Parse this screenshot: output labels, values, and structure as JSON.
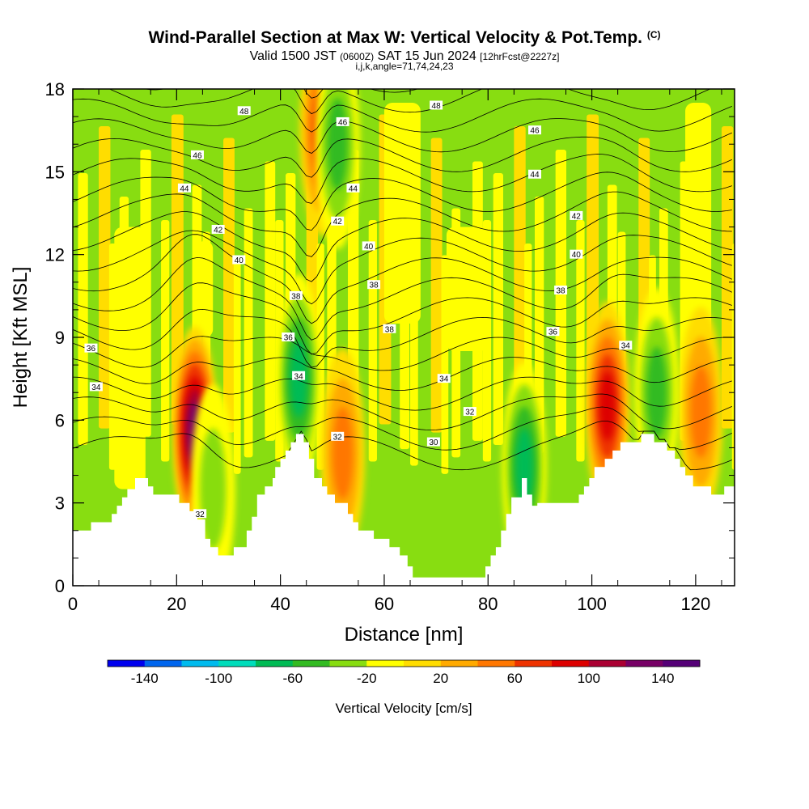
{
  "title": {
    "main": "Wind-Parallel Section at Max W: Vertical Velocity & Pot.Temp.",
    "copyright": "(C)",
    "valid_prefix": "Valid 1500 JST",
    "valid_small": "(0600Z)",
    "valid_date": "SAT 15 Jun 2024",
    "forecast": "[12hrFcst@2227z]",
    "indices": "i,j,k,angle=71,74,24,23"
  },
  "chart_data": {
    "type": "heatmap",
    "xlabel": "Distance [nm]",
    "ylabel": "Height [Kft MSL]",
    "xlim": [
      0,
      127.5
    ],
    "ylim": [
      0,
      18
    ],
    "x_ticks": [
      "0",
      "20",
      "40",
      "60",
      "80",
      "100",
      "120"
    ],
    "y_ticks": [
      "0",
      "3",
      "6",
      "9",
      "12",
      "15",
      "18"
    ],
    "colorbar": {
      "label": "Vertical Velocity [cm/s]",
      "tick_labels": [
        "-140",
        "-100",
        "-60",
        "-20",
        "20",
        "60",
        "100",
        "140"
      ],
      "levels": [
        -160,
        -140,
        -120,
        -100,
        -80,
        -60,
        -40,
        -20,
        0,
        20,
        40,
        60,
        80,
        100,
        120,
        140,
        160
      ],
      "colors": [
        "#0000ee",
        "#0066ee",
        "#00bbee",
        "#00ddbb",
        "#00bb55",
        "#33bb22",
        "#88dd11",
        "#ffff00",
        "#ffdd00",
        "#ffaa00",
        "#ff7700",
        "#ee3300",
        "#dd0000",
        "#aa0033",
        "#770066",
        "#550077"
      ]
    },
    "terrain_profile_kft": [
      [
        0,
        2.0
      ],
      [
        3.5,
        2.0
      ],
      [
        3.5,
        2.3
      ],
      [
        7.5,
        2.3
      ],
      [
        7.5,
        2.6
      ],
      [
        8.5,
        2.6
      ],
      [
        8.5,
        2.9
      ],
      [
        9.5,
        2.9
      ],
      [
        9.5,
        3.2
      ],
      [
        10.5,
        3.2
      ],
      [
        10.5,
        3.5
      ],
      [
        12.0,
        3.5
      ],
      [
        12.0,
        3.9
      ],
      [
        14.5,
        3.9
      ],
      [
        14.5,
        3.6
      ],
      [
        15.5,
        3.6
      ],
      [
        15.5,
        3.3
      ],
      [
        20.5,
        3.3
      ],
      [
        20.5,
        3.0
      ],
      [
        22.5,
        3.0
      ],
      [
        22.5,
        2.7
      ],
      [
        24.0,
        2.7
      ],
      [
        24.0,
        2.4
      ],
      [
        25.5,
        2.4
      ],
      [
        25.5,
        1.7
      ],
      [
        26.5,
        1.7
      ],
      [
        26.5,
        1.4
      ],
      [
        28.0,
        1.4
      ],
      [
        28.0,
        1.1
      ],
      [
        31.0,
        1.1
      ],
      [
        31.0,
        1.4
      ],
      [
        33.5,
        1.4
      ],
      [
        33.5,
        2.0
      ],
      [
        34.5,
        2.0
      ],
      [
        34.5,
        2.5
      ],
      [
        35.5,
        2.5
      ],
      [
        35.5,
        3.3
      ],
      [
        37.0,
        3.3
      ],
      [
        37.0,
        3.6
      ],
      [
        38.5,
        3.6
      ],
      [
        38.5,
        3.9
      ],
      [
        39.0,
        3.9
      ],
      [
        39.0,
        4.3
      ],
      [
        40.0,
        4.3
      ],
      [
        40.0,
        4.6
      ],
      [
        41.0,
        4.6
      ],
      [
        41.0,
        4.9
      ],
      [
        42.0,
        4.9
      ],
      [
        42.0,
        5.2
      ],
      [
        43.0,
        5.2
      ],
      [
        43.0,
        5.5
      ],
      [
        44.5,
        5.5
      ],
      [
        44.5,
        5.2
      ],
      [
        45.5,
        5.2
      ],
      [
        45.5,
        4.6
      ],
      [
        46.5,
        4.6
      ],
      [
        46.5,
        3.9
      ],
      [
        48.0,
        3.9
      ],
      [
        48.0,
        3.6
      ],
      [
        49.0,
        3.6
      ],
      [
        49.0,
        3.3
      ],
      [
        50.5,
        3.3
      ],
      [
        50.5,
        3.0
      ],
      [
        53.0,
        3.0
      ],
      [
        53.0,
        2.6
      ],
      [
        54.0,
        2.6
      ],
      [
        54.0,
        2.3
      ],
      [
        55.0,
        2.3
      ],
      [
        55.0,
        2.0
      ],
      [
        58.0,
        2.0
      ],
      [
        58.0,
        1.7
      ],
      [
        61.0,
        1.7
      ],
      [
        61.0,
        1.4
      ],
      [
        63.0,
        1.4
      ],
      [
        63.0,
        1.1
      ],
      [
        64.5,
        1.1
      ],
      [
        64.5,
        0.7
      ],
      [
        65.5,
        0.7
      ],
      [
        65.5,
        0.3
      ],
      [
        79.5,
        0.3
      ],
      [
        79.5,
        0.7
      ],
      [
        80.5,
        0.7
      ],
      [
        80.5,
        1.1
      ],
      [
        81.5,
        1.1
      ],
      [
        81.5,
        1.4
      ],
      [
        82.5,
        1.4
      ],
      [
        82.5,
        2.0
      ],
      [
        83.5,
        2.0
      ],
      [
        83.5,
        2.6
      ],
      [
        84.5,
        2.6
      ],
      [
        84.5,
        3.2
      ],
      [
        86.5,
        3.2
      ],
      [
        86.5,
        3.9
      ],
      [
        87.5,
        3.9
      ],
      [
        87.5,
        3.3
      ],
      [
        88.5,
        3.3
      ],
      [
        88.5,
        2.9
      ],
      [
        89.5,
        2.9
      ],
      [
        89.5,
        3.0
      ],
      [
        97.5,
        3.0
      ],
      [
        97.5,
        3.3
      ],
      [
        98.5,
        3.3
      ],
      [
        98.5,
        3.6
      ],
      [
        99.5,
        3.6
      ],
      [
        99.5,
        3.9
      ],
      [
        100.5,
        3.9
      ],
      [
        100.5,
        4.3
      ],
      [
        102.5,
        4.3
      ],
      [
        102.5,
        4.6
      ],
      [
        104.0,
        4.6
      ],
      [
        104.0,
        4.9
      ],
      [
        105.5,
        4.9
      ],
      [
        105.5,
        5.2
      ],
      [
        109.5,
        5.2
      ],
      [
        109.5,
        5.5
      ],
      [
        112.0,
        5.5
      ],
      [
        112.0,
        5.2
      ],
      [
        114.5,
        5.2
      ],
      [
        114.5,
        4.9
      ],
      [
        116.0,
        4.9
      ],
      [
        116.0,
        4.6
      ],
      [
        117.0,
        4.6
      ],
      [
        117.0,
        4.3
      ],
      [
        118.0,
        4.3
      ],
      [
        118.0,
        4.0
      ],
      [
        119.5,
        4.0
      ],
      [
        119.5,
        3.6
      ],
      [
        123.0,
        3.6
      ],
      [
        123.0,
        3.3
      ],
      [
        125.5,
        3.3
      ],
      [
        125.5,
        3.6
      ],
      [
        127.5,
        3.6
      ]
    ],
    "vertical_velocity_features": [
      {
        "x": 23.5,
        "y": 5.6,
        "peak_cm_s": 150
      },
      {
        "x": 48.0,
        "y": 16.5,
        "peak_cm_s": 80
      },
      {
        "x": 52.0,
        "y": 4.8,
        "peak_cm_s": 60
      },
      {
        "x": 103.0,
        "y": 6.5,
        "peak_cm_s": 100
      },
      {
        "x": 121.0,
        "y": 6.3,
        "peak_cm_s": 60
      },
      {
        "x": 43.5,
        "y": 7.5,
        "peak_cm_s": -80
      },
      {
        "x": 51.0,
        "y": 16.0,
        "peak_cm_s": -60
      },
      {
        "x": 87.0,
        "y": 4.3,
        "peak_cm_s": -80
      },
      {
        "x": 112.5,
        "y": 7.0,
        "peak_cm_s": -60
      },
      {
        "x": 27.0,
        "y": 3.5,
        "peak_cm_s": -40
      }
    ],
    "theta_labels": [
      {
        "text": "48",
        "x": 33,
        "y": 17.2
      },
      {
        "text": "48",
        "x": 70,
        "y": 17.4
      },
      {
        "text": "46",
        "x": 24,
        "y": 15.6
      },
      {
        "text": "46",
        "x": 52,
        "y": 16.8
      },
      {
        "text": "46",
        "x": 89,
        "y": 16.5
      },
      {
        "text": "44",
        "x": 21.5,
        "y": 14.4
      },
      {
        "text": "44",
        "x": 54,
        "y": 14.4
      },
      {
        "text": "44",
        "x": 89,
        "y": 14.9
      },
      {
        "text": "42",
        "x": 28,
        "y": 12.9
      },
      {
        "text": "42",
        "x": 51,
        "y": 13.2
      },
      {
        "text": "42",
        "x": 97,
        "y": 13.4
      },
      {
        "text": "40",
        "x": 32,
        "y": 11.8
      },
      {
        "text": "40",
        "x": 57,
        "y": 12.3
      },
      {
        "text": "40",
        "x": 97,
        "y": 12.0
      },
      {
        "text": "38",
        "x": 43,
        "y": 10.5
      },
      {
        "text": "38",
        "x": 58,
        "y": 10.9
      },
      {
        "text": "38",
        "x": 94,
        "y": 10.7
      },
      {
        "text": "38",
        "x": 61,
        "y": 9.3
      },
      {
        "text": "36",
        "x": 3.5,
        "y": 8.6
      },
      {
        "text": "36",
        "x": 41.5,
        "y": 9.0
      },
      {
        "text": "36",
        "x": 92.5,
        "y": 9.2
      },
      {
        "text": "34",
        "x": 4.5,
        "y": 7.2
      },
      {
        "text": "34",
        "x": 43.5,
        "y": 7.6
      },
      {
        "text": "34",
        "x": 71.5,
        "y": 7.5
      },
      {
        "text": "34",
        "x": 106.5,
        "y": 8.7
      },
      {
        "text": "32",
        "x": 51,
        "y": 5.4
      },
      {
        "text": "32",
        "x": 76.5,
        "y": 6.3
      },
      {
        "text": "32",
        "x": 24.5,
        "y": 2.6
      },
      {
        "text": "30",
        "x": 69.5,
        "y": 5.2
      }
    ]
  }
}
